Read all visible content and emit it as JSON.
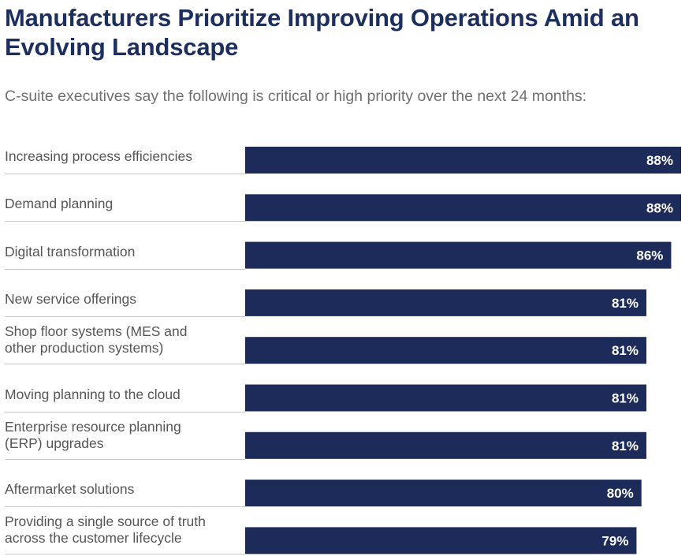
{
  "header": {
    "title": "Manufacturers Prioritize Improving Operations Amid an Evolving Landscape",
    "subtitle": "C-suite executives say the following is critical or high priority over the next 24 months:"
  },
  "colors": {
    "bar": "#1c2b5a",
    "bar_label": "#ffffff",
    "title": "#1c2f5e",
    "label": "#555555",
    "rule": "#c8c8c8"
  },
  "chart_data": {
    "type": "bar",
    "orientation": "horizontal",
    "categories": [
      "Increasing process efficiencies",
      "Demand planning",
      "Digital transformation",
      "New service offerings",
      "Shop floor systems (MES and\nother production systems)",
      "Moving planning to the cloud",
      "Enterprise resource planning\n(ERP) upgrades",
      "Aftermarket solutions",
      "Providing a single source of truth\nacross the customer lifecycle"
    ],
    "values": [
      88,
      88,
      86,
      81,
      81,
      81,
      81,
      80,
      79
    ],
    "value_labels": [
      "88%",
      "88%",
      "86%",
      "81%",
      "81%",
      "81%",
      "81%",
      "80%",
      "79%"
    ],
    "unit": "%",
    "xlim": [
      0,
      88
    ],
    "title": "Manufacturers Prioritize Improving Operations Amid an Evolving Landscape",
    "subtitle": "C-suite executives say the following is critical or high priority over the next 24 months:",
    "grid": false,
    "legend": "none"
  }
}
